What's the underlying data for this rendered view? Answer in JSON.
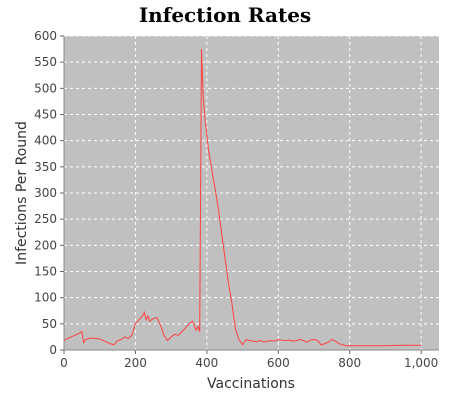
{
  "chart_data": {
    "type": "line",
    "title": "Infection Rates",
    "xlabel": "Vaccinations",
    "ylabel": "Infections Per Round",
    "xlim": [
      0,
      1050
    ],
    "ylim": [
      0,
      600
    ],
    "x_ticks": [
      0,
      200,
      400,
      600,
      800,
      1000
    ],
    "x_tick_labels": [
      "0",
      "200",
      "400",
      "600",
      "800",
      "1,000"
    ],
    "y_ticks": [
      0,
      50,
      100,
      150,
      200,
      250,
      300,
      350,
      400,
      450,
      500,
      550,
      600
    ],
    "y_tick_labels": [
      "0",
      "50",
      "100",
      "150",
      "200",
      "250",
      "300",
      "350",
      "400",
      "450",
      "500",
      "550",
      "600"
    ],
    "grid": true,
    "legend": "none",
    "plot_background": "#c0c0c0",
    "series": [
      {
        "color": "#ff4040",
        "x": [
          0,
          10,
          20,
          30,
          40,
          50,
          55,
          60,
          70,
          80,
          90,
          100,
          110,
          120,
          130,
          140,
          150,
          160,
          170,
          180,
          190,
          200,
          210,
          220,
          225,
          230,
          235,
          240,
          245,
          250,
          260,
          270,
          280,
          290,
          300,
          310,
          320,
          330,
          340,
          350,
          360,
          370,
          375,
          380,
          385,
          390,
          395,
          400,
          405,
          410,
          420,
          430,
          440,
          450,
          460,
          470,
          480,
          490,
          500,
          505,
          510,
          520,
          530,
          540,
          550,
          560,
          570,
          580,
          590,
          600,
          610,
          620,
          630,
          640,
          650,
          660,
          670,
          680,
          690,
          700,
          710,
          720,
          730,
          740,
          750,
          760,
          770,
          780,
          790,
          800,
          850,
          900,
          950,
          1000
        ],
        "y": [
          18,
          22,
          25,
          28,
          31,
          35,
          14,
          20,
          22,
          23,
          22,
          21,
          18,
          15,
          12,
          10,
          18,
          20,
          25,
          22,
          28,
          50,
          58,
          65,
          72,
          58,
          65,
          55,
          58,
          60,
          62,
          48,
          28,
          18,
          25,
          30,
          28,
          35,
          42,
          50,
          55,
          38,
          45,
          35,
          575,
          480,
          440,
          410,
          380,
          360,
          320,
          280,
          230,
          180,
          130,
          90,
          40,
          20,
          10,
          15,
          20,
          18,
          17,
          16,
          18,
          15,
          17,
          18,
          17,
          20,
          19,
          18,
          19,
          17,
          18,
          20,
          18,
          15,
          19,
          20,
          18,
          10,
          12,
          15,
          20,
          17,
          12,
          10,
          8,
          8,
          8,
          8,
          9,
          9
        ]
      }
    ]
  }
}
